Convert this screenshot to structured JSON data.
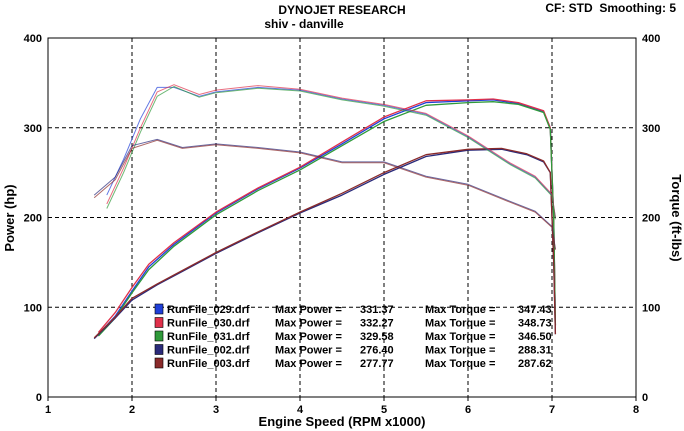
{
  "chart_data": {
    "type": "line",
    "title": "DYNOJET RESEARCH",
    "subtitle": "shiv - danville",
    "header_right": "CF: STD  Smoothing: 5",
    "xlabel": "Engine Speed (RPM x1000)",
    "ylabel": "Power (hp)",
    "ylabel_right": "Torque (ft-lbs)",
    "xlim": [
      1,
      8
    ],
    "ylim": [
      0,
      400
    ],
    "ylim_right": [
      0,
      400
    ],
    "x_ticks": [
      "1",
      "2",
      "3",
      "4",
      "5",
      "6",
      "7",
      "8"
    ],
    "y_ticks": [
      "0",
      "100",
      "200",
      "300",
      "400"
    ],
    "y_ticks_right": [
      "0",
      "100",
      "200",
      "300",
      "400"
    ],
    "grid": true,
    "legend_position": "bottom-center",
    "legend": [
      {
        "file": "RunFile_029.drf",
        "power_label": "Max Power =",
        "power": "331.37",
        "torque_label": "Max Torque =",
        "torque": "347.43",
        "color": "#1f3fd8"
      },
      {
        "file": "RunFile_030.drf",
        "power_label": "Max Power =",
        "power": "332.27",
        "torque_label": "Max Torque =",
        "torque": "348.73",
        "color": "#e0304a"
      },
      {
        "file": "RunFile_031.drf",
        "power_label": "Max Power =",
        "power": "329.58",
        "torque_label": "Max Torque =",
        "torque": "346.50",
        "color": "#2f9a3a"
      },
      {
        "file": "RunFile_002.drf",
        "power_label": "Max Power =",
        "power": "276.40",
        "torque_label": "Max Torque =",
        "torque": "288.31",
        "color": "#2a2a7a"
      },
      {
        "file": "RunFile_003.drf",
        "power_label": "Max Power =",
        "power": "277.77",
        "torque_label": "Max Torque =",
        "torque": "287.62",
        "color": "#8a2a2a"
      }
    ],
    "series": [
      {
        "kind": "power",
        "color": "#1f3fd8",
        "x": [
          1.6,
          1.8,
          2.0,
          2.2,
          2.5,
          3.0,
          3.5,
          4.0,
          4.5,
          5.0,
          5.5,
          6.0,
          6.3,
          6.6,
          6.9,
          6.98,
          7.02,
          7.04
        ],
        "y": [
          70,
          90,
          118,
          145,
          170,
          205,
          232,
          255,
          282,
          310,
          328,
          330,
          331,
          327,
          318,
          300,
          200,
          80
        ]
      },
      {
        "kind": "power",
        "color": "#e0304a",
        "x": [
          1.6,
          1.8,
          2.0,
          2.2,
          2.5,
          3.0,
          3.5,
          4.0,
          4.5,
          5.0,
          5.5,
          6.0,
          6.3,
          6.6,
          6.9,
          6.98,
          7.02,
          7.04
        ],
        "y": [
          72,
          94,
          122,
          148,
          172,
          206,
          233,
          256,
          284,
          312,
          330,
          331,
          332,
          328,
          319,
          300,
          200,
          80
        ]
      },
      {
        "kind": "power",
        "color": "#2f9a3a",
        "x": [
          1.6,
          1.8,
          2.0,
          2.2,
          2.5,
          3.0,
          3.5,
          4.0,
          4.5,
          5.0,
          5.5,
          6.0,
          6.3,
          6.6,
          6.9,
          6.98,
          7.02,
          7.04
        ],
        "y": [
          68,
          88,
          116,
          142,
          168,
          203,
          230,
          253,
          280,
          307,
          325,
          328,
          329,
          326,
          317,
          298,
          198,
          80
        ]
      },
      {
        "kind": "power",
        "color": "#2a2a7a",
        "x": [
          1.55,
          1.8,
          2.0,
          2.3,
          2.6,
          3.0,
          3.5,
          4.0,
          4.5,
          5.0,
          5.5,
          6.0,
          6.4,
          6.7,
          6.9,
          6.98,
          7.02,
          7.04
        ],
        "y": [
          65,
          88,
          108,
          125,
          140,
          160,
          183,
          205,
          225,
          248,
          268,
          275,
          276,
          270,
          262,
          250,
          150,
          70
        ]
      },
      {
        "kind": "power",
        "color": "#8a2a2a",
        "x": [
          1.55,
          1.8,
          2.0,
          2.3,
          2.6,
          3.0,
          3.5,
          4.0,
          4.5,
          5.0,
          5.5,
          6.0,
          6.4,
          6.7,
          6.9,
          6.98,
          7.02,
          7.04
        ],
        "y": [
          66,
          89,
          110,
          126,
          141,
          161,
          184,
          206,
          227,
          250,
          270,
          276,
          277,
          271,
          263,
          250,
          150,
          70
        ]
      },
      {
        "kind": "torque",
        "color": "#1f3fd8",
        "x": [
          1.7,
          1.9,
          2.1,
          2.3,
          2.5,
          2.8,
          3.0,
          3.5,
          4.0,
          4.5,
          5.0,
          5.5,
          6.0,
          6.5,
          6.8,
          7.0,
          7.04
        ],
        "y": [
          225,
          265,
          310,
          345,
          345,
          335,
          340,
          345,
          342,
          332,
          325,
          315,
          290,
          260,
          245,
          225,
          200
        ]
      },
      {
        "kind": "torque",
        "color": "#e0304a",
        "x": [
          1.7,
          1.9,
          2.1,
          2.3,
          2.5,
          2.8,
          3.0,
          3.5,
          4.0,
          4.5,
          5.0,
          5.5,
          6.0,
          6.5,
          6.8,
          7.0,
          7.04
        ],
        "y": [
          215,
          255,
          300,
          340,
          348,
          337,
          342,
          347,
          343,
          333,
          326,
          316,
          291,
          261,
          246,
          226,
          200
        ]
      },
      {
        "kind": "torque",
        "color": "#2f9a3a",
        "x": [
          1.7,
          1.9,
          2.1,
          2.3,
          2.5,
          2.8,
          3.0,
          3.5,
          4.0,
          4.5,
          5.0,
          5.5,
          6.0,
          6.5,
          6.8,
          7.0,
          7.04
        ],
        "y": [
          210,
          250,
          295,
          335,
          346,
          334,
          339,
          344,
          341,
          331,
          324,
          314,
          289,
          259,
          244,
          224,
          198
        ]
      },
      {
        "kind": "torque",
        "color": "#2a2a7a",
        "x": [
          1.55,
          1.8,
          2.0,
          2.3,
          2.6,
          3.0,
          3.5,
          4.0,
          4.5,
          5.0,
          5.5,
          6.0,
          6.5,
          6.8,
          7.0,
          7.04
        ],
        "y": [
          225,
          245,
          280,
          287,
          278,
          282,
          278,
          273,
          262,
          262,
          246,
          237,
          218,
          207,
          190,
          165
        ]
      },
      {
        "kind": "torque",
        "color": "#8a2a2a",
        "x": [
          1.55,
          1.8,
          2.0,
          2.3,
          2.6,
          3.0,
          3.5,
          4.0,
          4.5,
          5.0,
          5.5,
          6.0,
          6.5,
          6.8,
          7.0,
          7.04
        ],
        "y": [
          222,
          242,
          277,
          286,
          277,
          281,
          277,
          272,
          261,
          261,
          245,
          236,
          217,
          206,
          189,
          164
        ]
      }
    ]
  }
}
